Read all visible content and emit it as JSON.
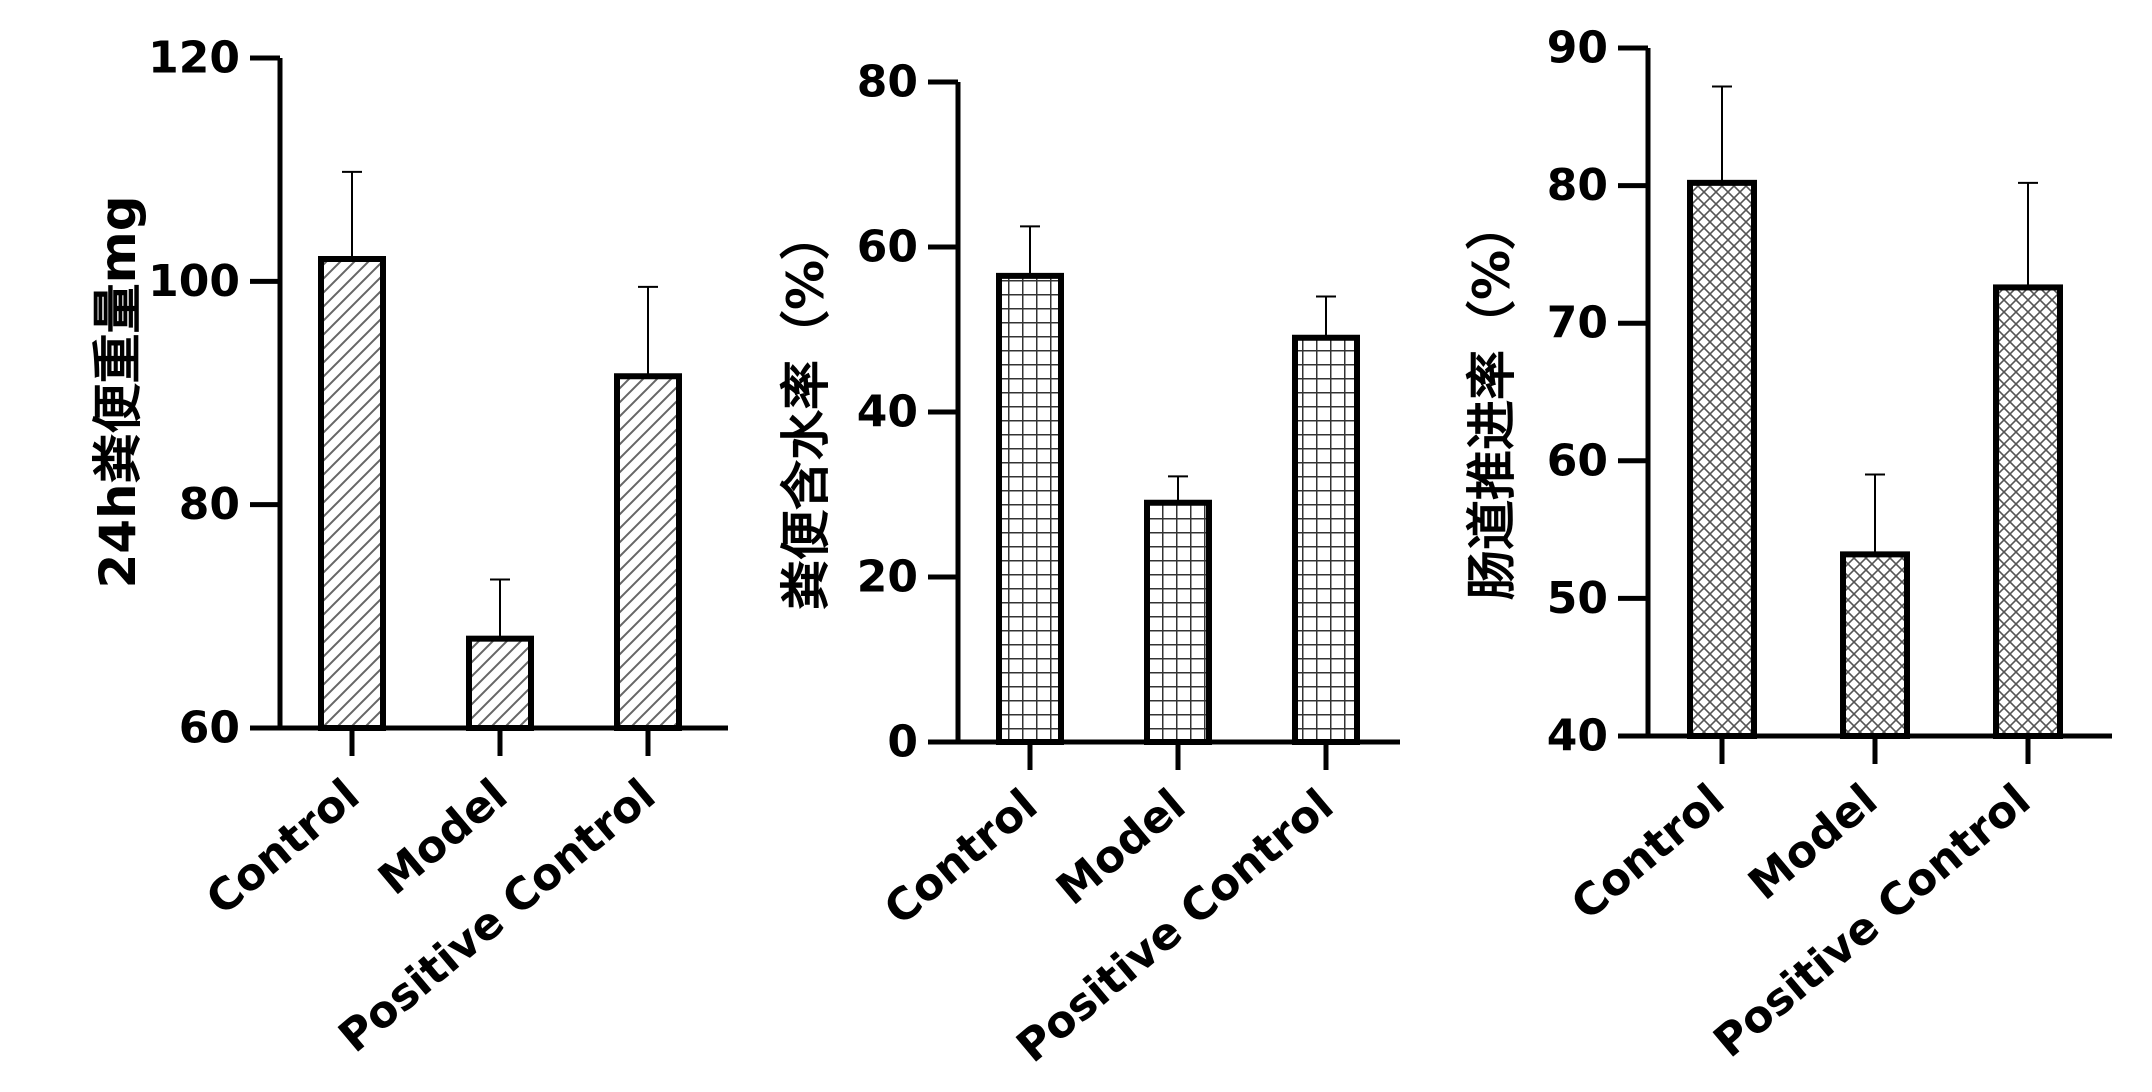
{
  "chart_data": [
    {
      "type": "bar",
      "categories": [
        "Control",
        "Model",
        "Positive Control"
      ],
      "values": [
        102,
        68,
        91.5
      ],
      "errors": [
        7.8,
        5.3,
        8
      ],
      "ylabel": "24h粪便重量mg",
      "ylim": [
        60,
        120
      ],
      "yticks": [
        "60",
        "80",
        "100",
        "120"
      ],
      "pattern": "diagonal-hatch",
      "grid": false
    },
    {
      "type": "bar",
      "categories": [
        "Control",
        "Model",
        "Positive Control"
      ],
      "values": [
        56.5,
        29,
        49
      ],
      "errors": [
        6,
        3.2,
        5
      ],
      "ylabel": "粪便含水率（%）",
      "ylim": [
        0,
        80
      ],
      "yticks": [
        "0",
        "20",
        "40",
        "60",
        "80"
      ],
      "pattern": "square-grid",
      "grid": false
    },
    {
      "type": "bar",
      "categories": [
        "Control",
        "Model",
        "Positive Control"
      ],
      "values": [
        80.2,
        53.2,
        72.6
      ],
      "errors": [
        7,
        5.8,
        7.6
      ],
      "ylabel": "肠道推进率（%）",
      "ylim": [
        40,
        90
      ],
      "yticks": [
        "40",
        "50",
        "60",
        "70",
        "80",
        "90"
      ],
      "pattern": "crosshatch",
      "grid": false
    }
  ],
  "colors": {
    "bar_fill": "#ffffff",
    "bar_stroke": "#000000",
    "hatch": "#666666"
  }
}
